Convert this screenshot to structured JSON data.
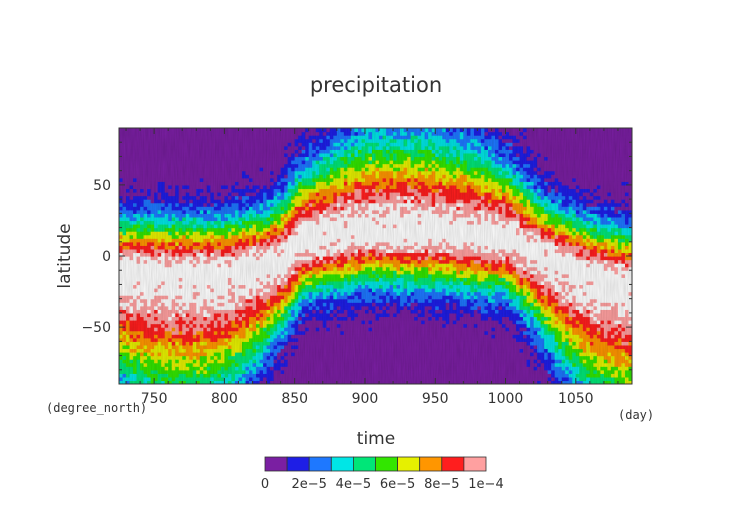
{
  "chart_data": {
    "type": "heatmap",
    "title": "precipitation",
    "xlabel": "time",
    "ylabel": "latitude",
    "x_units": "(day)",
    "y_units": "(degree_north)",
    "xlim": [
      725,
      1090
    ],
    "ylim": [
      -90,
      90
    ],
    "x_ticks": [
      750,
      800,
      850,
      900,
      950,
      1000,
      1050
    ],
    "y_ticks": [
      -50,
      0,
      50
    ],
    "x_tick_labels": [
      "750",
      "800",
      "850",
      "900",
      "950",
      "1000",
      "1050"
    ],
    "y_tick_labels": [
      "−50",
      "0",
      "50"
    ],
    "grid": false,
    "colorbar": {
      "placement": "bottom",
      "levels": [
        0,
        1e-05,
        2e-05,
        3e-05,
        4e-05,
        5e-05,
        6e-05,
        7e-05,
        8e-05,
        9e-05,
        0.0001
      ],
      "tick_labels": [
        "0",
        "2e−5",
        "4e−5",
        "6e−5",
        "8e−5",
        "1e−4"
      ],
      "colors": [
        "#7a1fa2",
        "#1e1ee6",
        "#1e78ff",
        "#00e6e6",
        "#00e678",
        "#32e600",
        "#e6f000",
        "#ff9600",
        "#ff1e1e",
        "#ffa0a0",
        "#ffffff"
      ]
    },
    "itcz": {
      "description_points_time": [
        725,
        760,
        800,
        840,
        855,
        900,
        950,
        1000,
        1030,
        1060,
        1090
      ],
      "description_points_lat": [
        -12,
        -12,
        -12,
        -4,
        10,
        18,
        16,
        12,
        -2,
        -14,
        -20
      ]
    }
  }
}
